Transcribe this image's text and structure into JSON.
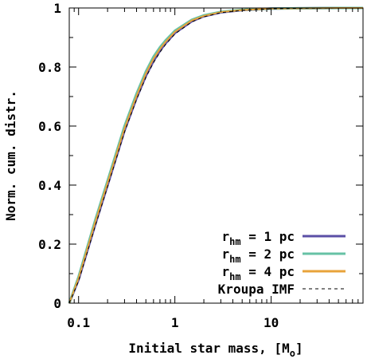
{
  "chart_data": {
    "type": "line",
    "title": "",
    "xlabel": "Initial star mass, [M",
    "xlabel_sub": "o",
    "xlabel_tail": "]",
    "ylabel": "Norm. cum. distr.",
    "xscale": "log",
    "xlim": [
      0.08,
      90
    ],
    "ylim": [
      0,
      1
    ],
    "xticks": [
      {
        "value": 0.1,
        "label": "0.1"
      },
      {
        "value": 1,
        "label": "1"
      },
      {
        "value": 10,
        "label": "10"
      }
    ],
    "yticks": [
      {
        "value": 0,
        "label": "0"
      },
      {
        "value": 0.2,
        "label": "0.2"
      },
      {
        "value": 0.4,
        "label": "0.4"
      },
      {
        "value": 0.6,
        "label": "0.6"
      },
      {
        "value": 0.8,
        "label": "0.8"
      },
      {
        "value": 1,
        "label": "1"
      }
    ],
    "grid": false,
    "legend_position": "bottom-right",
    "series": [
      {
        "label_main": "r",
        "label_sub": "hm",
        "label_tail": " = 1 pc",
        "color": "#5b4fa6",
        "dash": "solid",
        "width": 3,
        "x": [
          0.08,
          0.1,
          0.15,
          0.2,
          0.3,
          0.4,
          0.5,
          0.6,
          0.7,
          0.8,
          1.0,
          1.5,
          2,
          3,
          5,
          10,
          20,
          50,
          90
        ],
        "y": [
          0.0,
          0.08,
          0.27,
          0.4,
          0.585,
          0.695,
          0.77,
          0.82,
          0.855,
          0.88,
          0.915,
          0.955,
          0.972,
          0.985,
          0.993,
          0.998,
          0.999,
          1.0,
          1.0
        ]
      },
      {
        "label_main": "r",
        "label_sub": "hm",
        "label_tail": " = 2 pc",
        "color": "#66c2a5",
        "dash": "solid",
        "width": 3,
        "x": [
          0.08,
          0.1,
          0.15,
          0.2,
          0.3,
          0.4,
          0.5,
          0.6,
          0.7,
          0.8,
          1.0,
          1.5,
          2,
          3,
          5,
          10,
          20,
          50,
          90
        ],
        "y": [
          0.0,
          0.09,
          0.285,
          0.415,
          0.6,
          0.71,
          0.785,
          0.835,
          0.867,
          0.89,
          0.923,
          0.96,
          0.975,
          0.987,
          0.994,
          0.998,
          0.999,
          1.0,
          1.0
        ]
      },
      {
        "label_main": "r",
        "label_sub": "hm",
        "label_tail": " = 4 pc",
        "color": "#e8a33a",
        "dash": "solid",
        "width": 2,
        "x": [
          0.08,
          0.1,
          0.15,
          0.2,
          0.3,
          0.4,
          0.5,
          0.6,
          0.7,
          0.8,
          1.0,
          1.5,
          2,
          3,
          5,
          10,
          20,
          50,
          90
        ],
        "y": [
          0.0,
          0.085,
          0.278,
          0.408,
          0.592,
          0.702,
          0.778,
          0.828,
          0.861,
          0.885,
          0.919,
          0.958,
          0.973,
          0.986,
          0.993,
          0.998,
          0.999,
          1.0,
          1.0
        ]
      },
      {
        "label_main": "Kroupa IMF",
        "label_sub": "",
        "label_tail": "",
        "color": "#000000",
        "dash": "dashed",
        "width": 1,
        "x": [
          0.08,
          0.1,
          0.15,
          0.2,
          0.3,
          0.4,
          0.5,
          0.6,
          0.7,
          0.8,
          1.0,
          1.5,
          2,
          3,
          5,
          10,
          20,
          50,
          90
        ],
        "y": [
          0.0,
          0.075,
          0.265,
          0.395,
          0.58,
          0.69,
          0.765,
          0.815,
          0.85,
          0.876,
          0.912,
          0.953,
          0.97,
          0.984,
          0.992,
          0.997,
          0.999,
          1.0,
          1.0
        ]
      }
    ]
  }
}
